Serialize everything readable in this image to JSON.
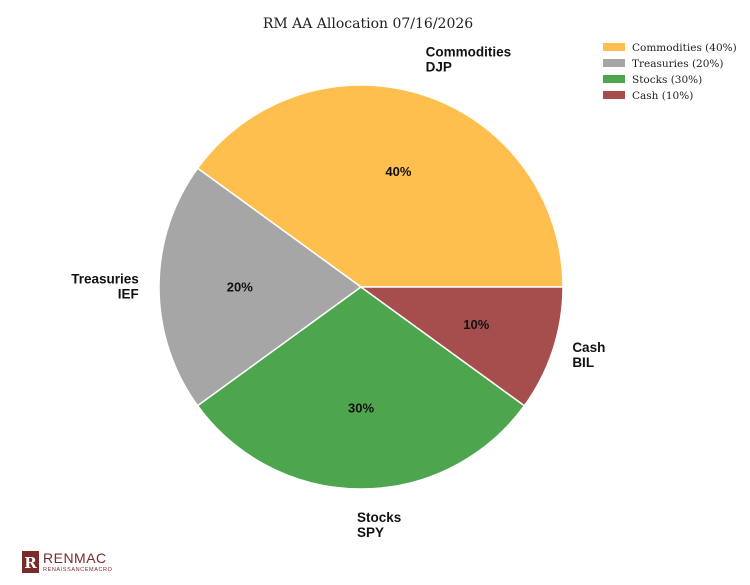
{
  "chart_data": {
    "type": "pie",
    "title": "RM AA Allocation 07/16/2026",
    "slices": [
      {
        "name": "Commodities",
        "ticker": "DJP",
        "value": 40,
        "pct_label": "40%",
        "legend": "Commodities (40%)",
        "color": "#FFBF4F"
      },
      {
        "name": "Treasuries",
        "ticker": "IEF",
        "value": 20,
        "pct_label": "20%",
        "legend": "Treasuries (20%)",
        "color": "#A6A6A6"
      },
      {
        "name": "Stocks",
        "ticker": "SPY",
        "value": 30,
        "pct_label": "30%",
        "legend": "Stocks (30%)",
        "color": "#4DA64D"
      },
      {
        "name": "Cash",
        "ticker": "BIL",
        "value": 10,
        "pct_label": "10%",
        "legend": "Cash (10%)",
        "color": "#A64D4D"
      }
    ],
    "start_angle_deg": 0,
    "direction": "counterclockwise",
    "legend_position": "top-right"
  },
  "logo": {
    "mark": "R",
    "name": "RENMAC",
    "subtitle": "RENAISSANCEMACRO",
    "color": "#7A2A2A"
  }
}
